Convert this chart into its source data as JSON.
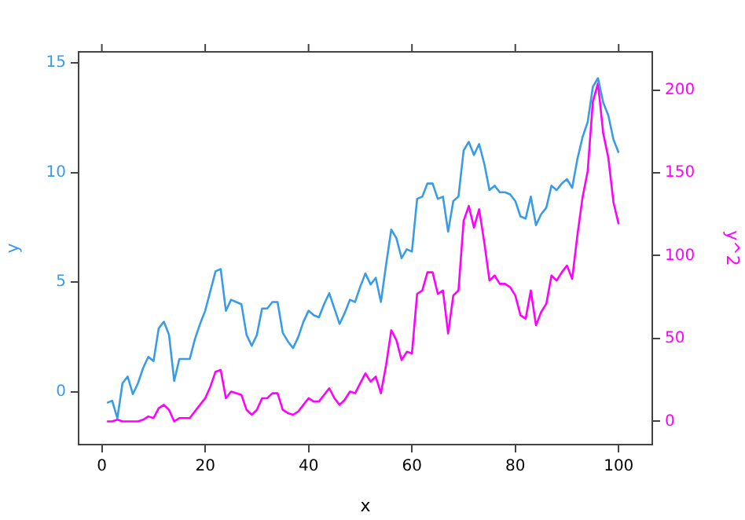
{
  "chart_data": {
    "type": "line",
    "xlabel": "x",
    "ylabel": "y",
    "y2label": "y^2",
    "x": [
      1,
      2,
      3,
      4,
      5,
      6,
      7,
      8,
      9,
      10,
      11,
      12,
      13,
      14,
      15,
      16,
      17,
      18,
      19,
      20,
      21,
      22,
      23,
      24,
      25,
      26,
      27,
      28,
      29,
      30,
      31,
      32,
      33,
      34,
      35,
      36,
      37,
      38,
      39,
      40,
      41,
      42,
      43,
      44,
      45,
      46,
      47,
      48,
      49,
      50,
      51,
      52,
      53,
      54,
      55,
      56,
      57,
      58,
      59,
      60,
      61,
      62,
      63,
      64,
      65,
      66,
      67,
      68,
      69,
      70,
      71,
      72,
      73,
      74,
      75,
      76,
      77,
      78,
      79,
      80,
      81,
      82,
      83,
      84,
      85,
      86,
      87,
      88,
      89,
      90,
      91,
      92,
      93,
      94,
      95,
      96,
      97,
      98,
      99,
      100
    ],
    "xlim": [
      -4.5,
      106.5
    ],
    "xticks": [
      0,
      20,
      40,
      60,
      80,
      100
    ],
    "ylim": [
      -2.4,
      15.5
    ],
    "yticks": [
      0,
      5,
      10,
      15
    ],
    "y2lim": [
      -14,
      223
    ],
    "y2ticks": [
      0,
      50,
      100,
      150,
      200
    ],
    "marker": "none",
    "line_style": "solid",
    "series": [
      {
        "color": "#3a9be6",
        "values": [
          -0.5,
          -0.4,
          -1.2,
          0.4,
          0.7,
          -0.1,
          0.4,
          1.1,
          1.6,
          1.4,
          2.9,
          3.2,
          2.6,
          0.5,
          1.5,
          1.5,
          1.5,
          2.4,
          3.1,
          3.7,
          4.6,
          5.5,
          5.6,
          3.7,
          4.2,
          4.1,
          4.0,
          2.6,
          2.1,
          2.6,
          3.8,
          3.8,
          4.1,
          4.1,
          2.7,
          2.3,
          2.0,
          2.5,
          3.2,
          3.7,
          3.5,
          3.4,
          4.0,
          4.5,
          3.8,
          3.1,
          3.6,
          4.2,
          4.1,
          4.8,
          5.4,
          4.9,
          5.2,
          4.1,
          5.8,
          7.4,
          7.0,
          6.1,
          6.5,
          6.4,
          8.8,
          8.9,
          9.5,
          9.5,
          8.8,
          8.9,
          7.3,
          8.7,
          8.9,
          11.0,
          11.4,
          10.8,
          11.3,
          10.4,
          9.2,
          9.4,
          9.1,
          9.1,
          9.0,
          8.7,
          8.0,
          7.9,
          8.9,
          7.6,
          8.1,
          8.4,
          9.4,
          9.2,
          9.5,
          9.7,
          9.3,
          10.6,
          11.6,
          12.3,
          13.9,
          14.3,
          13.2,
          12.6,
          11.5,
          10.9
        ]
      },
      {
        "color": "#ff00ff",
        "axis": "y2",
        "values": [
          0,
          0,
          1,
          0,
          0,
          0,
          0,
          1,
          3,
          2,
          8,
          10,
          7,
          0,
          2,
          2,
          2,
          6,
          10,
          14,
          21,
          30,
          31,
          14,
          18,
          17,
          16,
          7,
          4,
          7,
          14,
          14,
          17,
          17,
          7,
          5,
          4,
          6,
          10,
          14,
          12,
          12,
          16,
          20,
          14,
          10,
          13,
          18,
          17,
          23,
          29,
          24,
          27,
          17,
          34,
          55,
          49,
          37,
          42,
          41,
          77,
          79,
          90,
          90,
          77,
          79,
          53,
          76,
          79,
          121,
          130,
          117,
          128,
          108,
          85,
          88,
          83,
          83,
          81,
          76,
          64,
          62,
          79,
          58,
          66,
          71,
          88,
          85,
          90,
          94,
          86,
          112,
          135,
          151,
          193,
          204,
          174,
          159,
          132,
          119
        ]
      }
    ]
  }
}
